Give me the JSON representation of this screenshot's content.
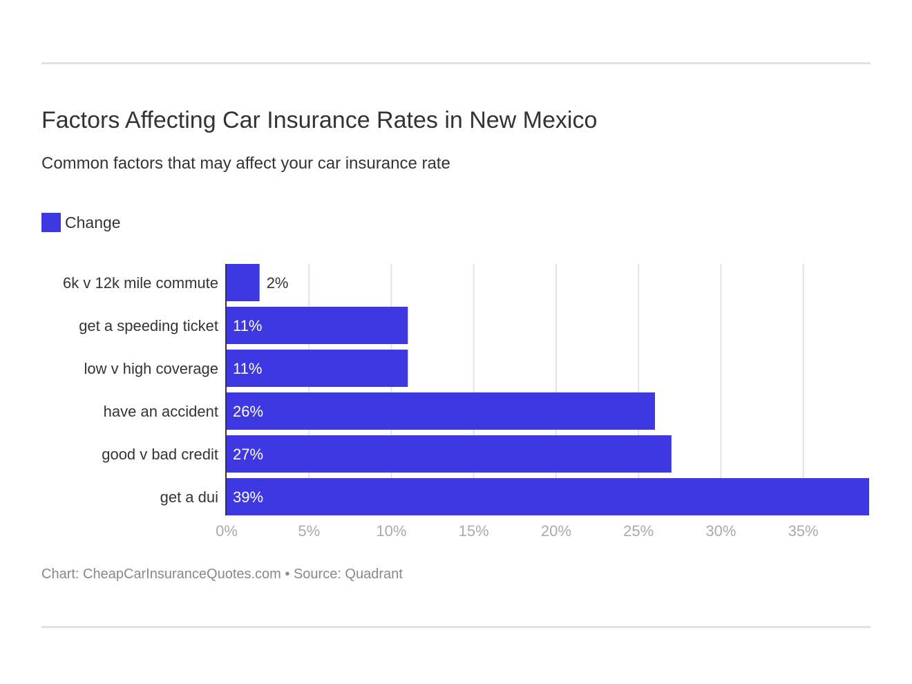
{
  "title": "Factors Affecting Car Insurance Rates in New Mexico",
  "subtitle": "Common factors that may affect your car insurance rate",
  "footer": "Chart: CheapCarInsuranceQuotes.com • Source: Quadrant",
  "chart_data": {
    "type": "bar",
    "orientation": "horizontal",
    "categories": [
      "6k v 12k mile commute",
      "get a speeding ticket",
      "low v high coverage",
      "have an accident",
      "good v bad credit",
      "get a dui"
    ],
    "series": [
      {
        "name": "Change",
        "values": [
          2,
          11,
          11,
          26,
          27,
          39
        ],
        "color": "#3e38e2"
      }
    ],
    "data_labels": [
      "2%",
      "11%",
      "11%",
      "26%",
      "27%",
      "39%"
    ],
    "x_ticks": [
      0,
      5,
      10,
      15,
      20,
      25,
      30,
      35
    ],
    "x_tick_labels": [
      "0%",
      "5%",
      "10%",
      "15%",
      "20%",
      "25%",
      "30%",
      "35%"
    ],
    "xlim": [
      0,
      39
    ],
    "grid": true,
    "legend": "top-left"
  }
}
